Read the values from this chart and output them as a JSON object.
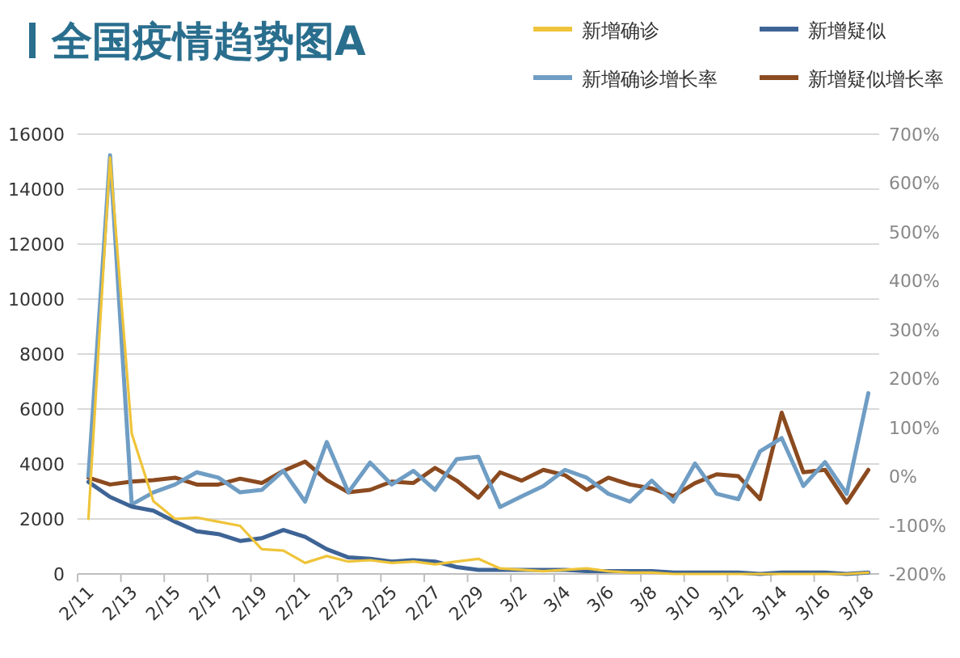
{
  "chart_data": {
    "type": "line",
    "title": "全国疫情趋势图A",
    "categories": [
      "2/11",
      null,
      "2/13",
      null,
      "2/15",
      null,
      "2/17",
      null,
      "2/19",
      null,
      "2/21",
      null,
      "2/23",
      null,
      "2/25",
      null,
      "2/27",
      null,
      "2/29",
      null,
      "3/2",
      null,
      "3/4",
      null,
      "3/6",
      null,
      "3/8",
      null,
      "3/10",
      null,
      "3/12",
      null,
      "3/14",
      null,
      "3/16",
      null,
      "3/18"
    ],
    "series": [
      {
        "name": "新增确诊",
        "color": "#efc43a",
        "values": [
          2000,
          15150,
          5100,
          2650,
          2000,
          2050,
          1900,
          1750,
          900,
          850,
          400,
          650,
          450,
          500,
          400,
          450,
          350,
          450,
          550,
          200,
          150,
          100,
          150,
          200,
          100,
          50,
          50,
          0,
          0,
          0,
          0,
          0,
          0,
          0,
          0,
          0,
          50
        ]
      },
      {
        "name": "新增疑似",
        "color": "#3e6496",
        "values": [
          3350,
          2800,
          2450,
          2300,
          1900,
          1550,
          1450,
          1200,
          1300,
          1600,
          1350,
          900,
          600,
          550,
          450,
          500,
          450,
          250,
          150,
          150,
          150,
          150,
          150,
          100,
          100,
          100,
          100,
          50,
          50,
          50,
          50,
          0,
          50,
          50,
          50,
          0,
          50
        ]
      },
      {
        "name": "新增确诊增长率",
        "color": "#6f9dc4",
        "axis": "y2",
        "values": [
          0,
          657,
          -58,
          -33,
          -17,
          8,
          -3,
          -33,
          -28,
          11,
          -52,
          70,
          -33,
          28,
          -17,
          11,
          -28,
          35,
          40,
          -63,
          -41,
          -20,
          13,
          -3,
          -36,
          -52,
          -9,
          -52,
          26,
          -36,
          -47,
          51,
          78,
          -20,
          29,
          -36,
          170
        ]
      },
      {
        "name": "新增疑似增长率",
        "color": "#8b4a1f",
        "axis": "y2",
        "values": [
          -3,
          -17,
          -11,
          -8,
          -3,
          -17,
          -17,
          -5,
          -14,
          11,
          30,
          -8,
          -33,
          -28,
          -11,
          -14,
          17,
          -9,
          -44,
          8,
          -9,
          13,
          2,
          -28,
          -3,
          -17,
          -25,
          -41,
          -14,
          4,
          0,
          -47,
          130,
          8,
          13,
          -54,
          13
        ]
      }
    ],
    "ylim": [
      0,
      16000
    ],
    "yticks": [
      0,
      2000,
      4000,
      6000,
      8000,
      10000,
      12000,
      14000,
      16000
    ],
    "y2lim": [
      -200,
      700
    ],
    "y2ticks": [
      {
        "value": -200,
        "label": "-200%"
      },
      {
        "value": -100,
        "label": "-100%"
      },
      {
        "value": 0,
        "label": "0%"
      },
      {
        "value": 100,
        "label": "100%"
      },
      {
        "value": 200,
        "label": "200%"
      },
      {
        "value": 300,
        "label": "300%"
      },
      {
        "value": 400,
        "label": "400%"
      },
      {
        "value": 500,
        "label": "500%"
      },
      {
        "value": 600,
        "label": "600%"
      },
      {
        "value": 700,
        "label": "700%"
      }
    ],
    "grid": "y",
    "legend": "top right",
    "line_style": "solid"
  }
}
